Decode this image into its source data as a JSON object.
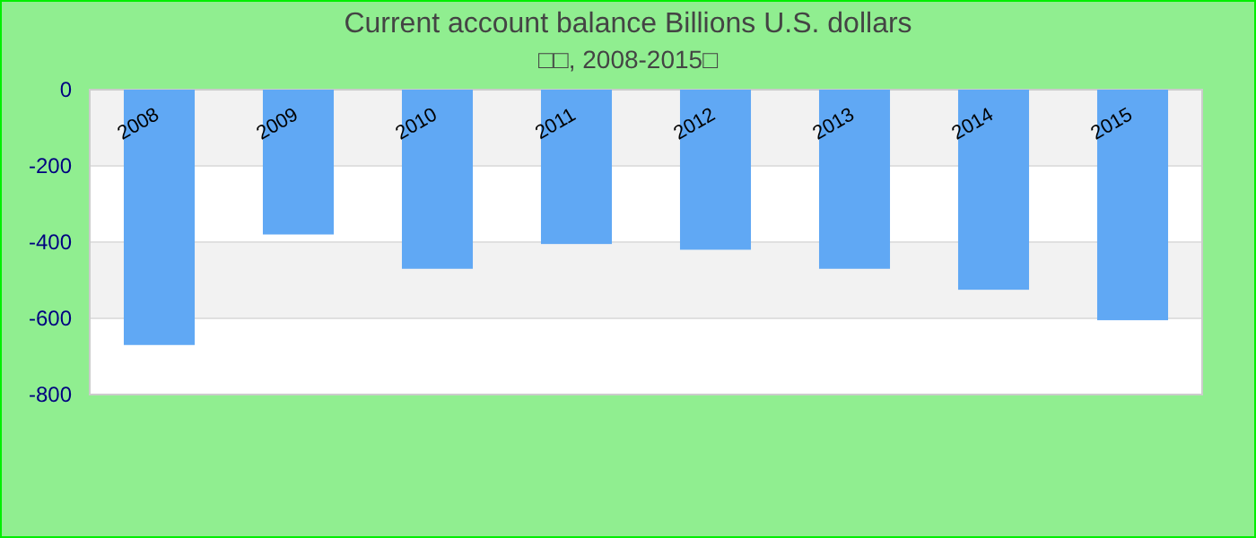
{
  "chart_data": {
    "type": "bar",
    "title": "Current account balance Billions U.S. dollars",
    "subtitle": "□□, 2008-2015□",
    "categories": [
      "2008",
      "2009",
      "2010",
      "2011",
      "2012",
      "2013",
      "2014",
      "2015"
    ],
    "values": [
      -670,
      -380,
      -470,
      -405,
      -420,
      -470,
      -525,
      -605
    ],
    "color": "#60a8f4",
    "ylim": [
      -800,
      0
    ],
    "yticks": [
      -800,
      -600,
      -400,
      -200,
      0
    ],
    "grid": "y"
  }
}
